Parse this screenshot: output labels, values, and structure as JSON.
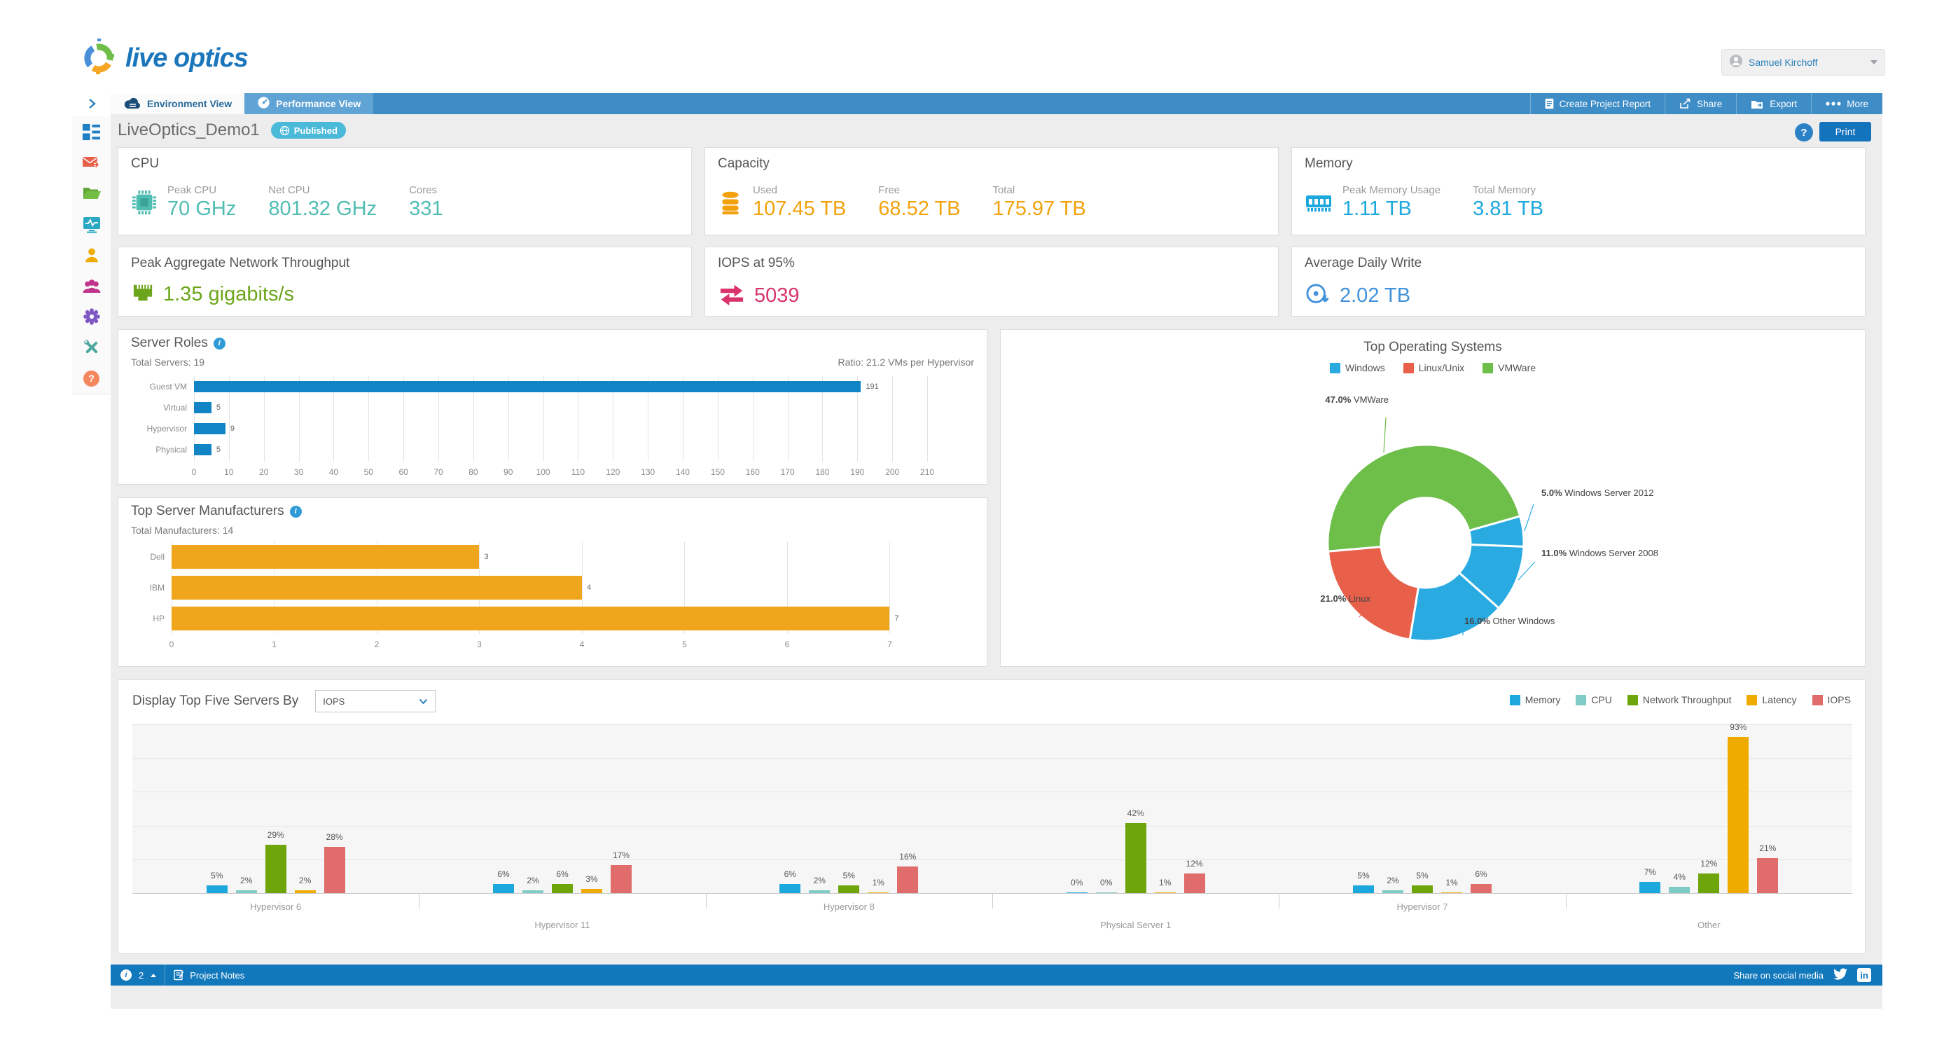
{
  "brand": {
    "logo_text": "live optics"
  },
  "header": {
    "user_name": "Samuel Kirchoff"
  },
  "tab_bar": {
    "tabs": [
      "Environment View",
      "Performance View"
    ],
    "actions": [
      "Create Project Report",
      "Share",
      "Export",
      "More"
    ]
  },
  "page": {
    "title": "LiveOptics_Demo1",
    "status_badge": "Published",
    "print_label": "Print",
    "help_label": "?"
  },
  "cards": {
    "cpu": {
      "title": "CPU",
      "color": "#4FBDB2",
      "cols": [
        {
          "label": "Peak CPU",
          "value": "70 GHz"
        },
        {
          "label": "Net CPU",
          "value": "801.32 GHz"
        },
        {
          "label": "Cores",
          "value": "331"
        }
      ]
    },
    "capacity": {
      "title": "Capacity",
      "color": "#F2A20D",
      "cols": [
        {
          "label": "Used",
          "value": "107.45 TB"
        },
        {
          "label": "Free",
          "value": "68.52 TB"
        },
        {
          "label": "Total",
          "value": "175.97 TB"
        }
      ]
    },
    "memory": {
      "title": "Memory",
      "color": "#1CA8DD",
      "cols": [
        {
          "label": "Peak Memory Usage",
          "value": "1.11 TB"
        },
        {
          "label": "Total Memory",
          "value": "3.81 TB"
        }
      ]
    },
    "network": {
      "title": "Peak Aggregate Network Throughput",
      "value": "1.35 gigabits/s",
      "color": "#6CA51B"
    },
    "iops": {
      "title": "IOPS at 95%",
      "value": "5039",
      "color": "#D9336B"
    },
    "daily_write": {
      "title": "Average Daily Write",
      "value": "2.02 TB",
      "color": "#4191DB"
    }
  },
  "sections": {
    "server_roles": {
      "title": "Server Roles",
      "total": "Total Servers: 19",
      "ratio": "Ratio: 21.2 VMs per Hypervisor"
    },
    "manufacturers": {
      "title": "Top Server Manufacturers",
      "total": "Total Manufacturers: 14"
    },
    "top_os": {
      "title": "Top Operating Systems"
    },
    "top_servers": {
      "control_label": "Display Top Five Servers By",
      "selected_metric": "IOPS"
    }
  },
  "footer": {
    "notification_count": "2",
    "project_notes": "Project Notes",
    "share_text": "Share on social media"
  },
  "chart_data": [
    {
      "id": "server_roles",
      "type": "bar",
      "orientation": "horizontal",
      "title": "Server Roles",
      "categories": [
        "Guest VM",
        "Virtual",
        "Hypervisor",
        "Physical"
      ],
      "values": [
        191,
        5,
        9,
        5
      ],
      "bar_color": "#1184C5",
      "xlim": [
        0,
        215
      ],
      "tick_step": 10,
      "tick_max": 210,
      "grid": true
    },
    {
      "id": "manufacturers",
      "type": "bar",
      "orientation": "horizontal",
      "title": "Top Server Manufacturers",
      "categories": [
        "Dell",
        "IBM",
        "HP"
      ],
      "values": [
        3,
        4,
        7
      ],
      "bar_color": "#EFA51C",
      "xlim": [
        0,
        7.7
      ],
      "tick_step": 1,
      "tick_max": 7,
      "grid": true
    },
    {
      "id": "top_os",
      "type": "pie",
      "title": "Top Operating Systems",
      "legend": [
        "Windows",
        "Linux/Unix",
        "VMWare"
      ],
      "legend_colors": [
        "#29ABE2",
        "#E8604A",
        "#6EBE4A"
      ],
      "start_angle_deg": 265,
      "slices": [
        {
          "label": "VMWare",
          "pct": 47.0,
          "color": "#6EBE4A"
        },
        {
          "label": "Windows Server 2012",
          "pct": 5.0,
          "color": "#29ABE2"
        },
        {
          "label": "Windows Server 2008",
          "pct": 11.0,
          "color": "#29ABE2"
        },
        {
          "label": "Other Windows",
          "pct": 16.0,
          "color": "#29ABE2"
        },
        {
          "label": "Linux",
          "pct": 21.0,
          "color": "#E8604A"
        }
      ]
    },
    {
      "id": "top_servers",
      "type": "bar",
      "grouped": true,
      "categories": [
        "Hypervisor 6",
        "Hypervisor 11",
        "Hypervisor 8",
        "Physical Server 1",
        "Hypervisor 7",
        "Other"
      ],
      "series": [
        {
          "name": "Memory",
          "color": "#1CA8DD",
          "values": [
            5,
            6,
            6,
            0,
            5,
            7
          ]
        },
        {
          "name": "CPU",
          "color": "#7FCCC6",
          "values": [
            2,
            2,
            2,
            0,
            2,
            4
          ]
        },
        {
          "name": "Network Throughput",
          "color": "#6EA50B",
          "values": [
            29,
            6,
            5,
            42,
            5,
            12
          ]
        },
        {
          "name": "Latency",
          "color": "#F0AB00",
          "values": [
            2,
            3,
            1,
            1,
            1,
            93
          ]
        },
        {
          "name": "IOPS",
          "color": "#E06C6C",
          "values": [
            28,
            17,
            16,
            12,
            6,
            21
          ]
        }
      ],
      "ylim": [
        0,
        100
      ],
      "value_suffix": "%"
    }
  ]
}
